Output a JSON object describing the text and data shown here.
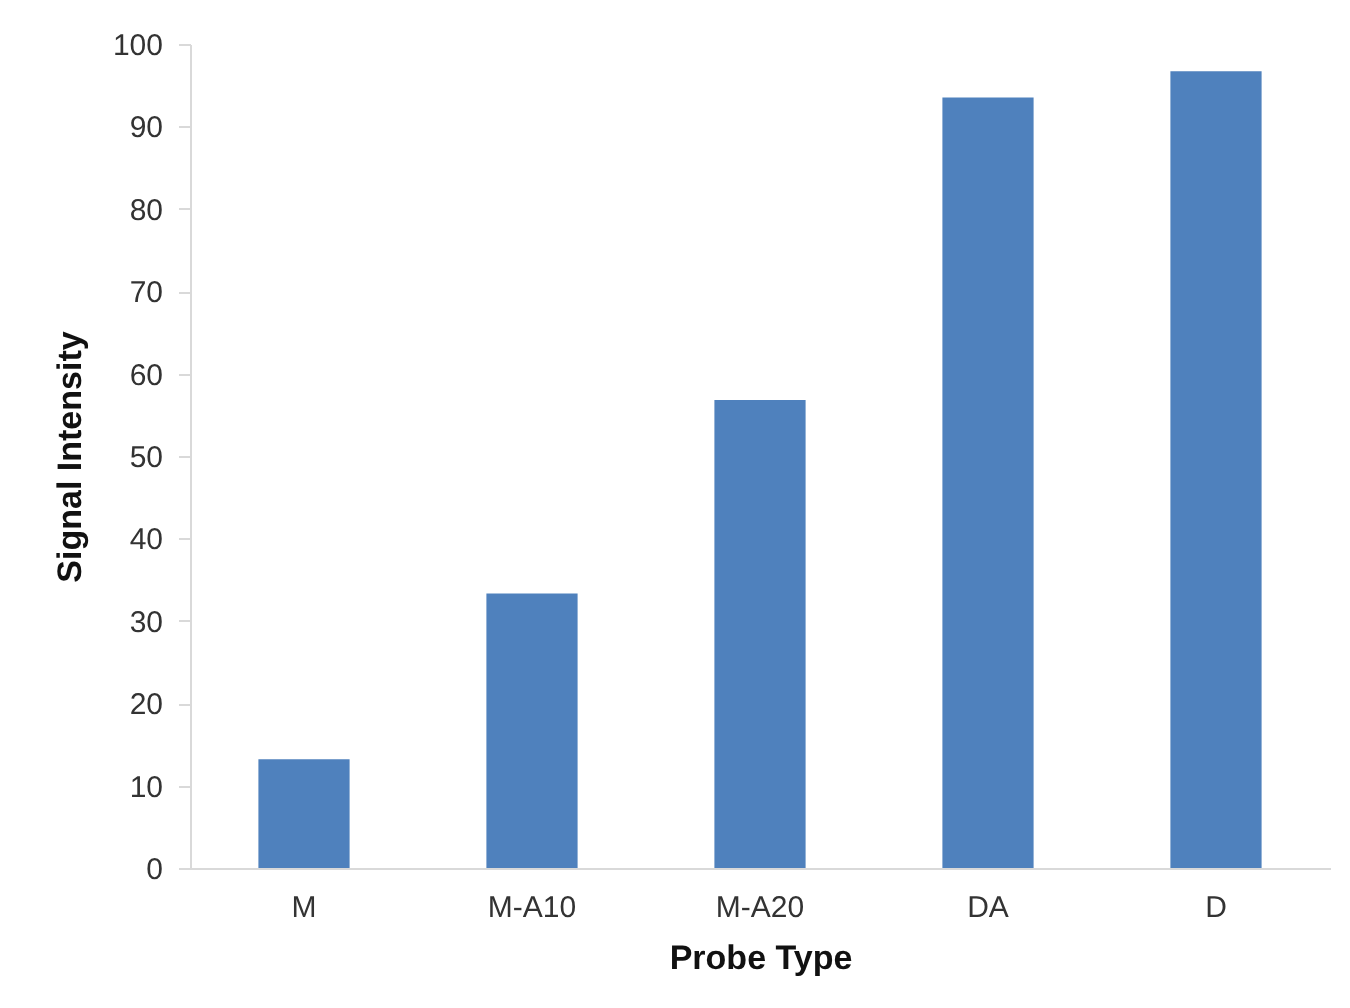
{
  "chart_data": {
    "type": "bar",
    "xlabel": "Probe Type",
    "ylabel": "Signal Intensity",
    "categories": [
      "M",
      "M-A10",
      "M-A20",
      "DA",
      "D"
    ],
    "values": [
      13.2,
      33.3,
      56.8,
      93.5,
      96.7
    ],
    "color": "#4f81bd",
    "ylim": [
      0,
      100
    ],
    "yticks": [
      0,
      10,
      20,
      30,
      40,
      50,
      60,
      70,
      80,
      90,
      100
    ],
    "grid": false
  }
}
